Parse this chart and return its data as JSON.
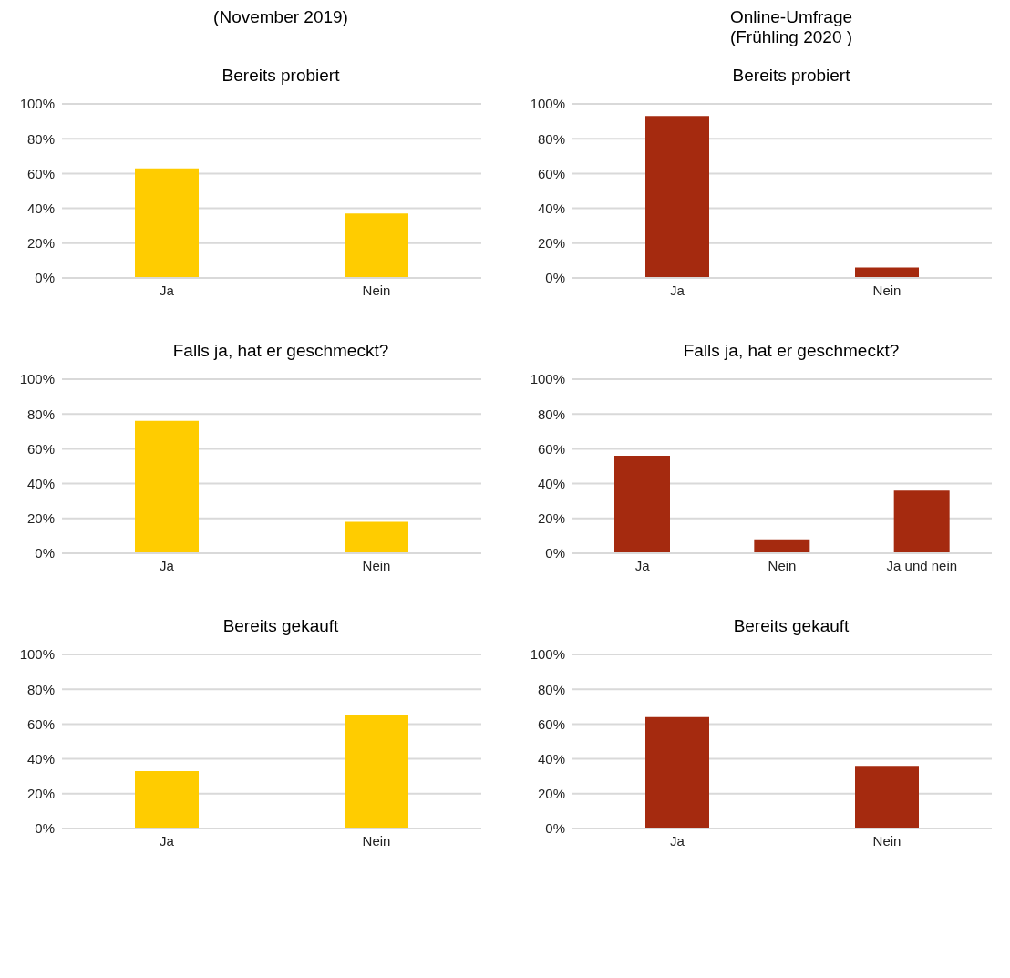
{
  "chart_data": [
    {
      "type": "bar",
      "subtitle": "(November 2019)",
      "title": "Bereits probiert",
      "categories": [
        "Ja",
        "Nein"
      ],
      "values": [
        63,
        37
      ],
      "color": "#ffcc00",
      "ylim": [
        0,
        100
      ],
      "yticks": [
        {
          "value": 0,
          "label": "0%"
        },
        {
          "value": 20,
          "label": "20%"
        },
        {
          "value": 40,
          "label": "40%"
        },
        {
          "value": 60,
          "label": "60%"
        },
        {
          "value": 80,
          "label": "80%"
        },
        {
          "value": 100,
          "label": "100%"
        }
      ],
      "grid": "y"
    },
    {
      "type": "bar",
      "subtitle": "Online-Umfrage\n(Frühling 2020 )",
      "title": "Bereits probiert",
      "categories": [
        "Ja",
        "Nein"
      ],
      "values": [
        93,
        6
      ],
      "color": "#a52a0f",
      "ylim": [
        0,
        100
      ],
      "yticks": [
        {
          "value": 0,
          "label": "0%"
        },
        {
          "value": 20,
          "label": "20%"
        },
        {
          "value": 40,
          "label": "40%"
        },
        {
          "value": 60,
          "label": "60%"
        },
        {
          "value": 80,
          "label": "80%"
        },
        {
          "value": 100,
          "label": "100%"
        }
      ],
      "grid": "y"
    },
    {
      "type": "bar",
      "title": "Falls ja, hat er geschmeckt?",
      "categories": [
        "Ja",
        "Nein"
      ],
      "values": [
        76,
        18
      ],
      "color": "#ffcc00",
      "ylim": [
        0,
        100
      ],
      "yticks": [
        {
          "value": 0,
          "label": "0%"
        },
        {
          "value": 20,
          "label": "20%"
        },
        {
          "value": 40,
          "label": "40%"
        },
        {
          "value": 60,
          "label": "60%"
        },
        {
          "value": 80,
          "label": "80%"
        },
        {
          "value": 100,
          "label": "100%"
        }
      ],
      "grid": "y"
    },
    {
      "type": "bar",
      "title": "Falls ja, hat er geschmeckt?",
      "categories": [
        "Ja",
        "Nein",
        "Ja und nein"
      ],
      "values": [
        56,
        8,
        36
      ],
      "color": "#a52a0f",
      "ylim": [
        0,
        100
      ],
      "yticks": [
        {
          "value": 0,
          "label": "0%"
        },
        {
          "value": 20,
          "label": "20%"
        },
        {
          "value": 40,
          "label": "40%"
        },
        {
          "value": 60,
          "label": "60%"
        },
        {
          "value": 80,
          "label": "80%"
        },
        {
          "value": 100,
          "label": "100%"
        }
      ],
      "grid": "y"
    },
    {
      "type": "bar",
      "title": "Bereits gekauft",
      "categories": [
        "Ja",
        "Nein"
      ],
      "values": [
        33,
        65
      ],
      "color": "#ffcc00",
      "ylim": [
        0,
        100
      ],
      "yticks": [
        {
          "value": 0,
          "label": "0%"
        },
        {
          "value": 20,
          "label": "20%"
        },
        {
          "value": 40,
          "label": "40%"
        },
        {
          "value": 60,
          "label": "60%"
        },
        {
          "value": 80,
          "label": "80%"
        },
        {
          "value": 100,
          "label": "100%"
        }
      ],
      "grid": "y"
    },
    {
      "type": "bar",
      "title": "Bereits gekauft",
      "categories": [
        "Ja",
        "Nein"
      ],
      "values": [
        64,
        36
      ],
      "color": "#a52a0f",
      "ylim": [
        0,
        100
      ],
      "yticks": [
        {
          "value": 0,
          "label": "0%"
        },
        {
          "value": 20,
          "label": "20%"
        },
        {
          "value": 40,
          "label": "40%"
        },
        {
          "value": 60,
          "label": "60%"
        },
        {
          "value": 80,
          "label": "80%"
        },
        {
          "value": 100,
          "label": "100%"
        }
      ],
      "grid": "y"
    }
  ]
}
